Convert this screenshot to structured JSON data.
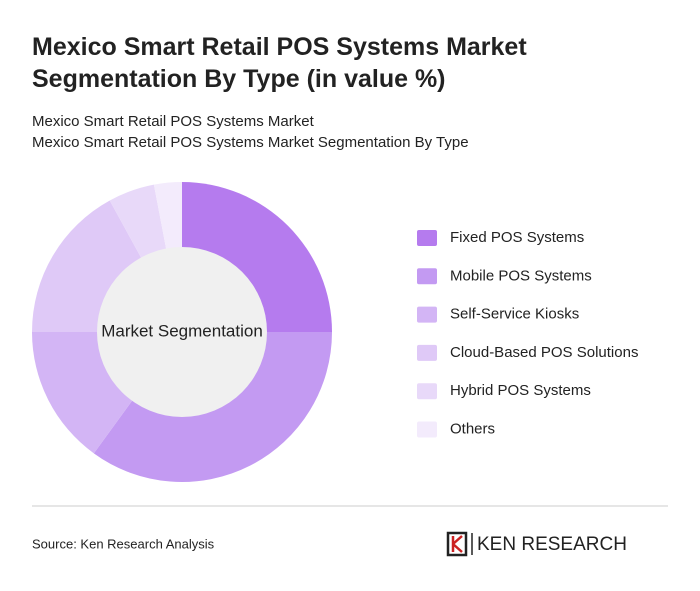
{
  "chart_data": {
    "type": "donut",
    "title": "Mexico Smart Retail POS Systems Market Segmentation By Type (in value %)",
    "subtitle": [
      "Mexico Smart Retail POS Systems Market",
      "Mexico Smart Retail POS Systems Market Segmentation By Type"
    ],
    "center_label": "Market Segmentation",
    "categories": [
      "Fixed POS Systems",
      "Mobile POS Systems",
      "Self-Service Kiosks",
      "Cloud-Based POS Solutions",
      "Hybrid POS Systems",
      "Others"
    ],
    "values": [
      25,
      35,
      15,
      17,
      5,
      3
    ],
    "colors": [
      "#b57bee",
      "#c39af2",
      "#d3b5f5",
      "#dfc9f7",
      "#e8d9f9",
      "#f3ebfc"
    ],
    "source": "Source: Ken Research Analysis",
    "logo": "KEN RESEARCH"
  }
}
